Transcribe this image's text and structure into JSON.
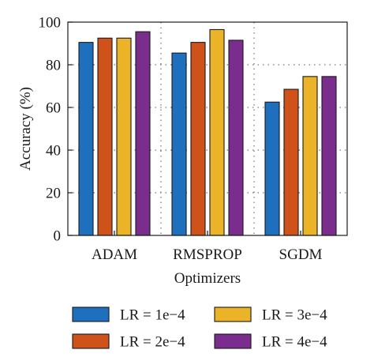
{
  "chart_data": {
    "type": "bar",
    "title": "",
    "xlabel": "Optimizers",
    "ylabel": "Accuracy (%)",
    "categories": [
      "ADAM",
      "RMSPROP",
      "SGDM"
    ],
    "ylim": [
      0,
      100
    ],
    "yticks": [
      0,
      20,
      40,
      60,
      80,
      100
    ],
    "grid": "dotted",
    "legend_position": "bottom",
    "series": [
      {
        "name": "LR = 1e−4",
        "color": "#1f6fbf",
        "values": [
          90.5,
          85.5,
          62.5
        ]
      },
      {
        "name": "LR = 2e−4",
        "color": "#d0521b",
        "values": [
          92.5,
          90.5,
          68.5
        ]
      },
      {
        "name": "LR = 3e−4",
        "color": "#ebb327",
        "values": [
          92.5,
          96.5,
          74.5
        ]
      },
      {
        "name": "LR = 4e−4",
        "color": "#7b2d8e",
        "values": [
          95.5,
          91.5,
          74.5
        ]
      }
    ]
  }
}
